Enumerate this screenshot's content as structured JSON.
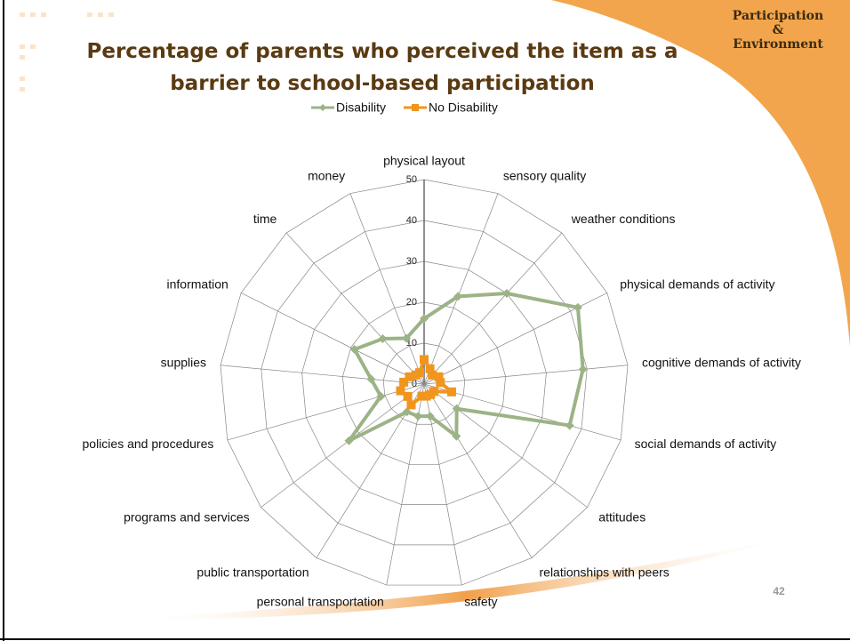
{
  "header": {
    "badge": [
      "Participation",
      "&",
      "Environment"
    ],
    "page_number": 42
  },
  "chart_data": {
    "type": "radar",
    "title": "Percentage of parents who perceived the item as a barrier to school-based participation",
    "categories": [
      "physical layout",
      "sensory quality",
      "weather conditions",
      "physical demands of activity",
      "cognitive demands of activity",
      "social demands of activity",
      "attitudes",
      "relationships with peers",
      "safety",
      "personal transportation",
      "public transportation",
      "programs and services",
      "policies and procedures",
      "supplies",
      "information",
      "time",
      "money"
    ],
    "series": [
      {
        "name": "Disability",
        "color": "#9cb386",
        "marker": "diamond",
        "values": [
          16,
          23,
          30,
          42,
          39,
          37,
          10,
          15,
          8,
          8,
          8,
          23,
          11,
          13,
          19,
          15,
          12
        ]
      },
      {
        "name": "No Disability",
        "color": "#f0951e",
        "marker": "square",
        "values": [
          6,
          4,
          3,
          4,
          4,
          7,
          3,
          3,
          3,
          3,
          6,
          5,
          6,
          5,
          4,
          3,
          3
        ]
      }
    ],
    "ylim": [
      0,
      50
    ],
    "yticks": [
      0,
      10,
      20,
      30,
      40,
      50
    ],
    "grid": true,
    "legend": "top"
  }
}
